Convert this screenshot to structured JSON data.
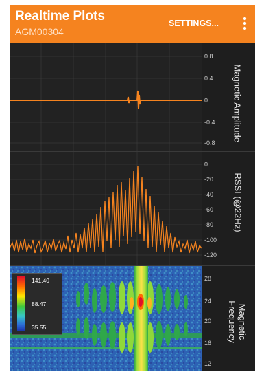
{
  "app": {
    "title": "Realtime Plots",
    "device_id": "AGM00304",
    "settings_label": "SETTINGS...",
    "overflow_icon": "more-vert-icon",
    "accent": "#f5831f"
  },
  "panels": {
    "magnetic_amplitude": {
      "ylabel": "Magnetic Amplitude",
      "ticks": [
        "0.8",
        "0.4",
        "0",
        "-0.4",
        "-0.8"
      ],
      "trace_color": "#f5831f"
    },
    "rssi": {
      "ylabel": "RSSI (@22Hz)",
      "ticks": [
        "0",
        "-20",
        "-40",
        "-60",
        "-80",
        "-100",
        "-120"
      ],
      "trace_color": "#f5831f"
    },
    "magnetic_frequency": {
      "ylabel": "Magnetic Frequency",
      "ticks": [
        "28",
        "24",
        "20",
        "16",
        "12"
      ],
      "colorbar": [
        "141.40",
        "88.47",
        "35.55"
      ]
    }
  }
}
